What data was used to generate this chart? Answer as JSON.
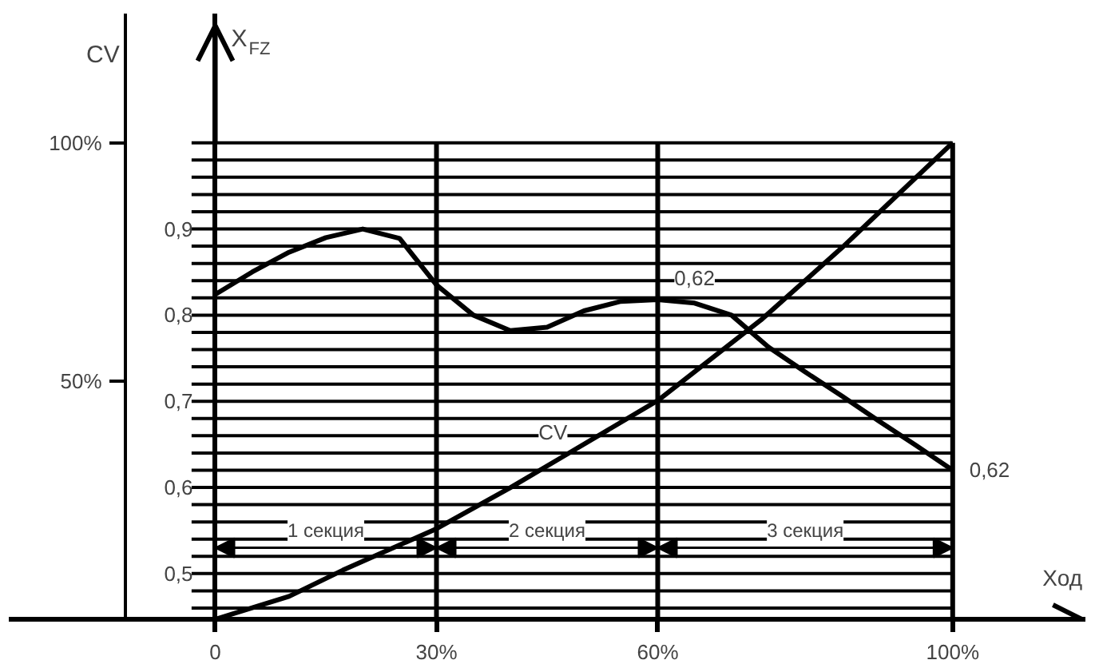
{
  "chart_data": {
    "type": "line",
    "xlabel": "Ход",
    "ylabel": "X$_{FZ}$",
    "y2label": "CV",
    "x": [
      0,
      5,
      10,
      15,
      20,
      25,
      30,
      35,
      40,
      45,
      50,
      55,
      60,
      65,
      70,
      75,
      80,
      85,
      90,
      95,
      100
    ],
    "xlim": [
      -28,
      118
    ],
    "xticks": [
      {
        "value": 0,
        "label": "0"
      },
      {
        "value": 30,
        "label": "30%"
      },
      {
        "value": 60,
        "label": "60%"
      },
      {
        "value": 100,
        "label": "100%"
      }
    ],
    "ylim": [
      0.447,
      1.15
    ],
    "yticks": [
      {
        "value": 0.46,
        "label": null
      },
      {
        "value": 0.48,
        "label": null
      },
      {
        "value": 0.5,
        "label": "0,5"
      },
      {
        "value": 0.52,
        "label": null
      },
      {
        "value": 0.54,
        "label": null
      },
      {
        "value": 0.56,
        "label": null
      },
      {
        "value": 0.58,
        "label": null
      },
      {
        "value": 0.6,
        "label": "0,6"
      },
      {
        "value": 0.62,
        "label": null
      },
      {
        "value": 0.64,
        "label": null
      },
      {
        "value": 0.66,
        "label": null
      },
      {
        "value": 0.68,
        "label": null
      },
      {
        "value": 0.7,
        "label": "0,7"
      },
      {
        "value": 0.72,
        "label": null
      },
      {
        "value": 0.74,
        "label": null
      },
      {
        "value": 0.76,
        "label": null
      },
      {
        "value": 0.78,
        "label": null
      },
      {
        "value": 0.8,
        "label": "0,8"
      },
      {
        "value": 0.82,
        "label": null
      },
      {
        "value": 0.84,
        "label": null
      },
      {
        "value": 0.86,
        "label": null
      },
      {
        "value": 0.88,
        "label": null
      },
      {
        "value": 0.9,
        "label": "0,9"
      },
      {
        "value": 0.92,
        "label": null
      },
      {
        "value": 0.94,
        "label": null
      },
      {
        "value": 0.96,
        "label": null
      },
      {
        "value": 0.98,
        "label": null
      },
      {
        "value": 1.0,
        "label": null
      }
    ],
    "y2lim": [
      0,
      127.1
    ],
    "y2ticks": [
      {
        "value": 50,
        "label": "50%"
      },
      {
        "value": 100,
        "label": "100%"
      }
    ],
    "grid": true,
    "series": [
      {
        "color": "#000000",
        "values": [
          0.824,
          0.85,
          0.873,
          0.89,
          0.9,
          0.889,
          0.835,
          0.8,
          0.782,
          0.786,
          0.805,
          0.816,
          0.818,
          0.814,
          0.8,
          0.763,
          0.734,
          0.706,
          0.677,
          0.649,
          0.62
        ]
      },
      {
        "color": "#000000",
        "axis": "y2",
        "x": [
          0,
          10,
          17.3,
          30,
          40,
          47,
          60,
          74,
          85,
          100
        ],
        "values": [
          0,
          4.8,
          10.3,
          19,
          27.6,
          34,
          45.9,
          62.8,
          78,
          100
        ]
      }
    ],
    "annotations": [
      "1 секция",
      "2 секция",
      "3 секция",
      {
        "text": "0,62",
        "x": 65,
        "y": 0.843
      },
      {
        "text": "0,62",
        "x": 105,
        "y": 0.62
      },
      {
        "text": "CV",
        "x": 45.8,
        "y": 0.664
      }
    ]
  }
}
